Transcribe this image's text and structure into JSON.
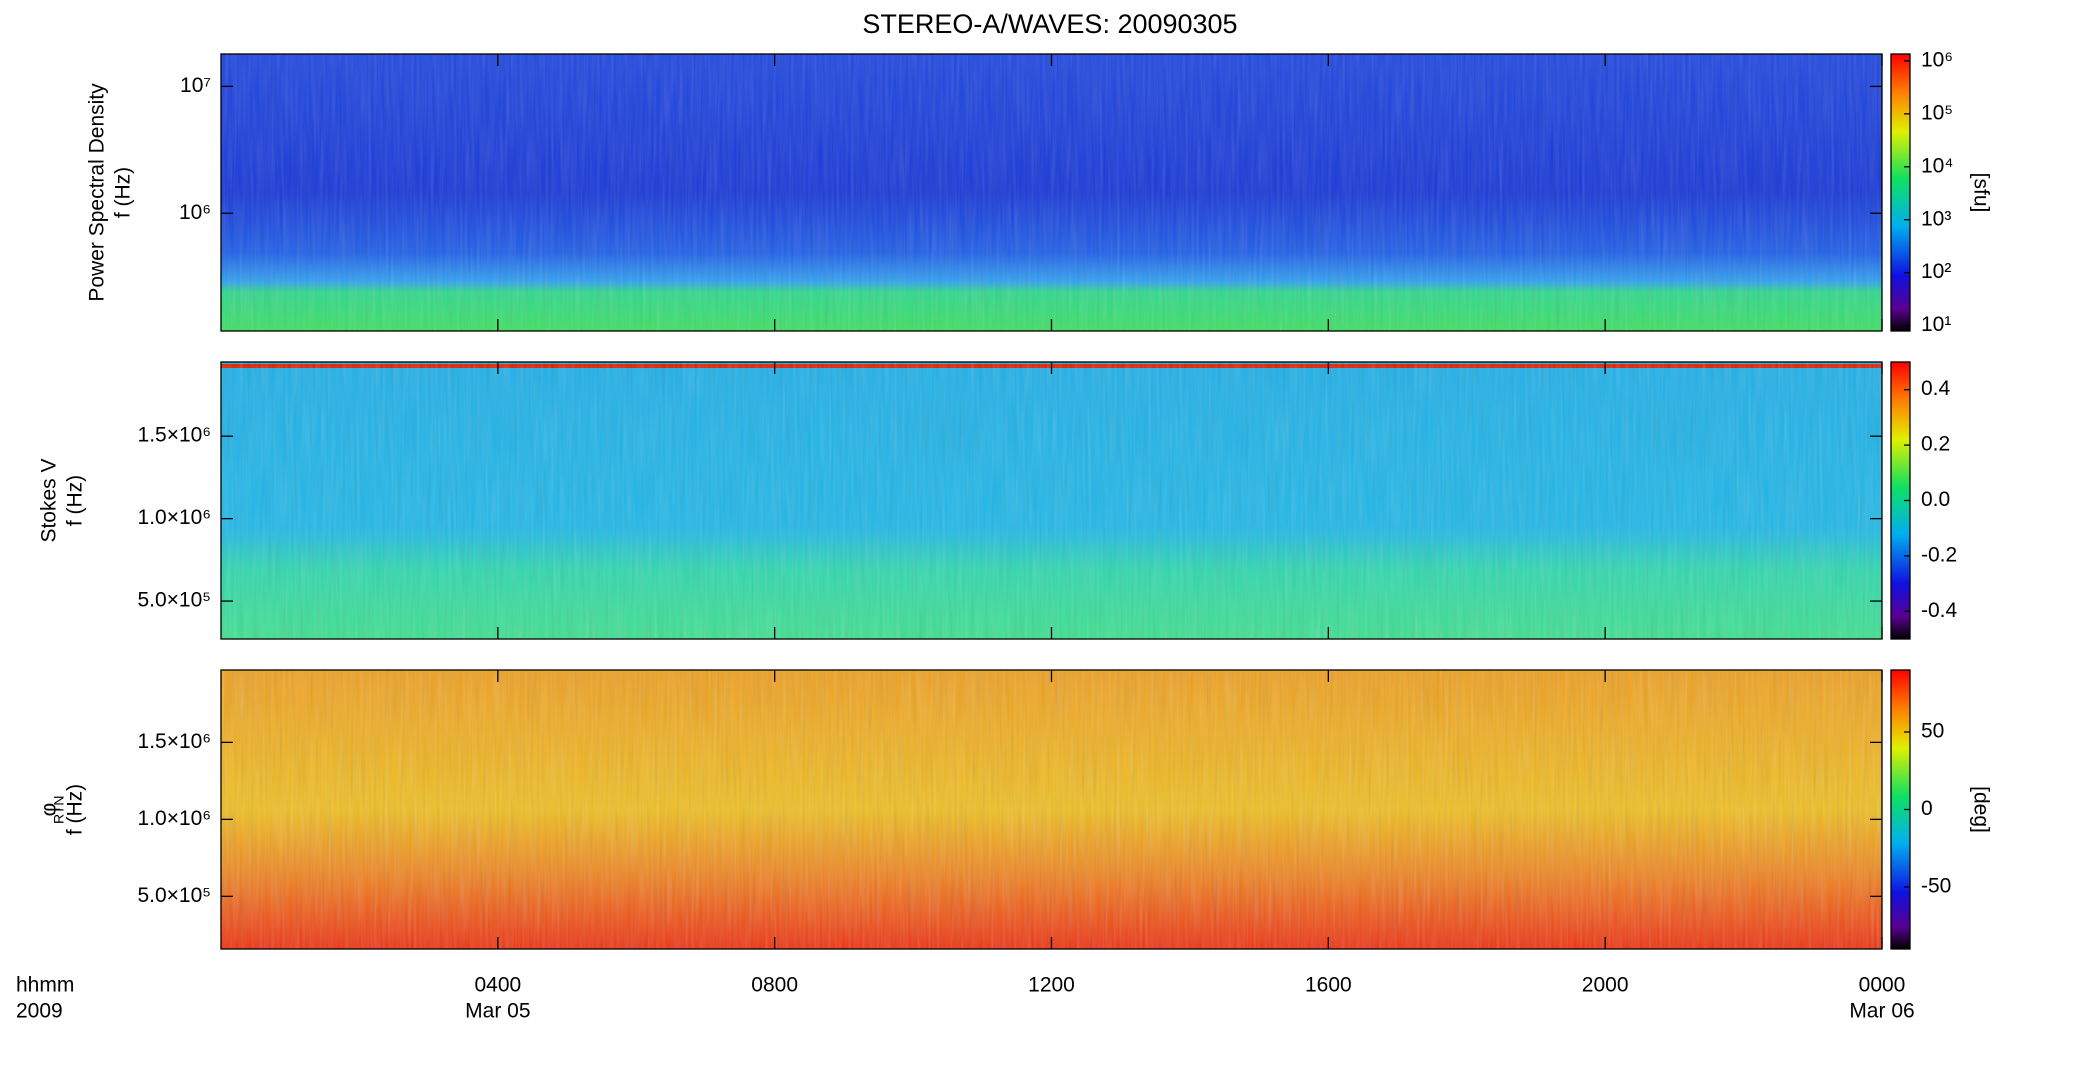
{
  "title": "STEREO-A/WAVES: 20090305",
  "xaxis": {
    "xlim": [
      0,
      24
    ],
    "xticks": [
      {
        "value": 4,
        "label": "0400"
      },
      {
        "value": 8,
        "label": "0800"
      },
      {
        "value": 12,
        "label": "1200"
      },
      {
        "value": 16,
        "label": "1600"
      },
      {
        "value": 20,
        "label": "2000"
      },
      {
        "value": 24,
        "label": "0000"
      }
    ],
    "dates": [
      {
        "value": 4,
        "label": "Mar 05"
      },
      {
        "value": 24,
        "label": "Mar 06"
      }
    ],
    "format_label": "hhmm",
    "year_label": "2009"
  },
  "panels": [
    {
      "ylabel": [
        "Power Spectral Density",
        "f (Hz)"
      ],
      "yscale": "log",
      "ylim": [
        118000,
        18000000
      ],
      "yticks": [
        {
          "value": 1000000,
          "label": "10⁶"
        },
        {
          "value": 10000000,
          "label": "10⁷"
        }
      ],
      "colorbar": {
        "scale": "log",
        "lim": [
          7.9,
          1350000
        ],
        "label": "[sfu]",
        "ticks": [
          {
            "value": 10,
            "label": "10¹"
          },
          {
            "value": 100,
            "label": "10²"
          },
          {
            "value": 1000,
            "label": "10³"
          },
          {
            "value": 10000,
            "label": "10⁴"
          },
          {
            "value": 100000,
            "label": "10⁵"
          },
          {
            "value": 1000000,
            "label": "10⁶"
          }
        ]
      }
    },
    {
      "ylabel": [
        "Stokes V",
        "f (Hz)"
      ],
      "yscale": "linear",
      "ylim": [
        270000,
        1950000
      ],
      "yticks": [
        {
          "value": 500000,
          "label": "5.0×10⁵"
        },
        {
          "value": 1000000,
          "label": "1.0×10⁶"
        },
        {
          "value": 1500000,
          "label": "1.5×10⁶"
        }
      ],
      "colorbar": {
        "scale": "linear",
        "lim": [
          -0.5,
          0.5
        ],
        "ticks": [
          -0.4,
          -0.2,
          {
            "value": 0,
            "label": "0.0"
          },
          0.2,
          0.4
        ]
      }
    },
    {
      "ylabel": [
        "φ",
        "f (Hz)"
      ],
      "ylabel_subscript": "RTN",
      "yscale": "linear",
      "ylim": [
        158000,
        1970000
      ],
      "yticks": [
        {
          "value": 500000,
          "label": "5.0×10⁵"
        },
        {
          "value": 1000000,
          "label": "1.0×10⁶"
        },
        {
          "value": 1500000,
          "label": "1.5×10⁶"
        }
      ],
      "colorbar": {
        "scale": "linear",
        "lim": [
          -90,
          90
        ],
        "label": "[deg]",
        "ticks": [
          -50,
          0,
          50
        ]
      }
    }
  ]
}
